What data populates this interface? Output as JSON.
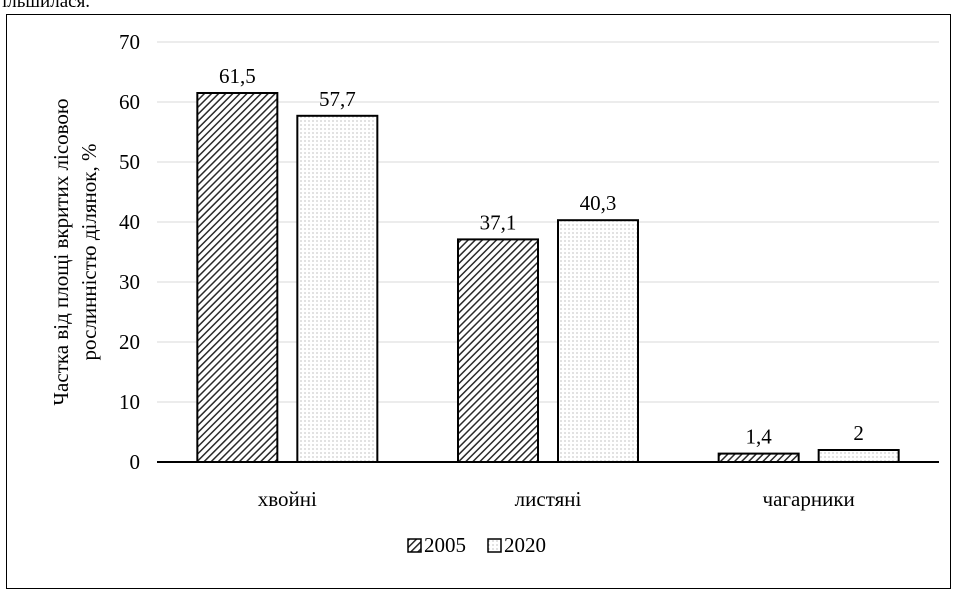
{
  "header_text": "ільшилася.",
  "chart_data": {
    "type": "bar",
    "categories": [
      "хвойні",
      "листяні",
      "чагарники"
    ],
    "series": [
      {
        "name": "2005",
        "values": [
          61.5,
          37.1,
          1.4
        ],
        "labels": [
          "61,5",
          "37,1",
          "1,4"
        ],
        "pattern": "diagonal-hatch"
      },
      {
        "name": "2020",
        "values": [
          57.7,
          40.3,
          2
        ],
        "labels": [
          "57,7",
          "40,3",
          "2"
        ],
        "pattern": "dotted"
      }
    ],
    "ylabel_line1": "Частка  від площі вкритих лісовою",
    "ylabel_line2": "рослинністю ділянок, %",
    "xlabel": "",
    "title": "",
    "ylim": [
      0,
      70
    ],
    "yticks": [
      0,
      10,
      20,
      30,
      40,
      50,
      60,
      70
    ],
    "grid": true,
    "legend_position": "bottom"
  }
}
